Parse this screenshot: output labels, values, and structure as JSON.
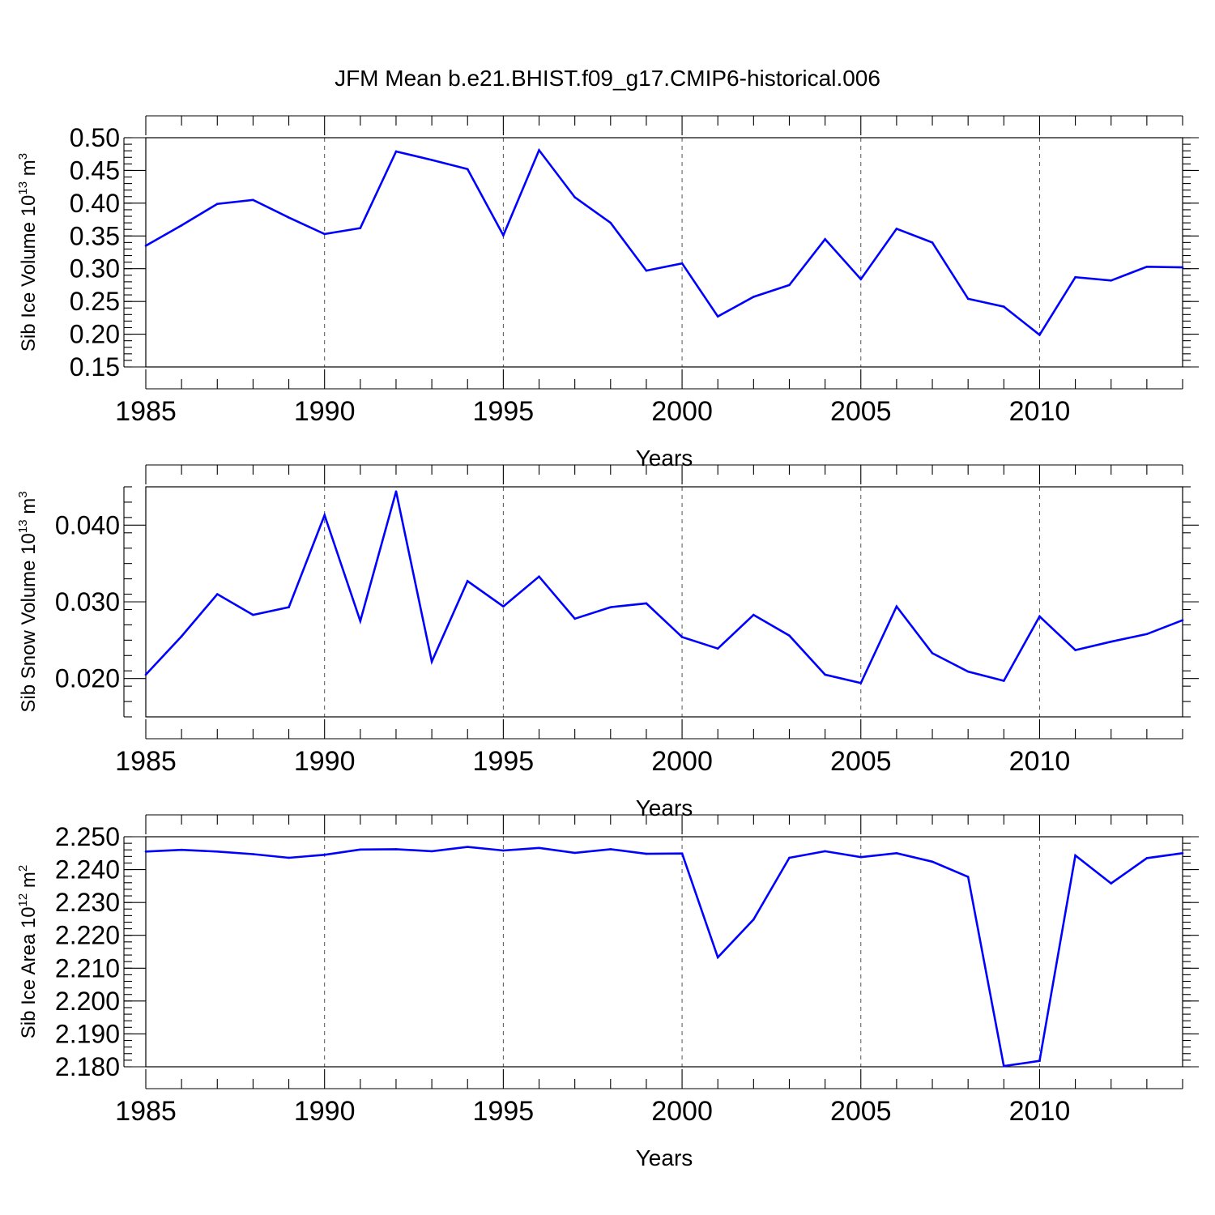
{
  "chart_data": {
    "title": "JFM Mean b.e21.BHIST.f09_g17.CMIP6-historical.006",
    "panels": [
      {
        "type": "line",
        "ylabel": {
          "prefix": "Sib Ice Volume 10",
          "exp": "13",
          "mid": " m",
          "unit_exp": "3"
        },
        "xlabel": "Years",
        "xlim": [
          1985,
          2014
        ],
        "xticks": [
          1985,
          1990,
          1995,
          2000,
          2005,
          2010
        ],
        "ylim": [
          0.15,
          0.5
        ],
        "yticks": [
          0.15,
          0.2,
          0.25,
          0.3,
          0.35,
          0.4,
          0.45,
          0.5
        ],
        "ytick_labels": [
          "0.15",
          "0.20",
          "0.25",
          "0.30",
          "0.35",
          "0.40",
          "0.45",
          "0.50"
        ],
        "grid": "vertical-dashed",
        "color": "#0000ff",
        "x": [
          1985,
          1986,
          1987,
          1988,
          1989,
          1990,
          1991,
          1992,
          1993,
          1994,
          1995,
          1996,
          1997,
          1998,
          1999,
          2000,
          2001,
          2002,
          2003,
          2004,
          2005,
          2006,
          2007,
          2008,
          2009,
          2010,
          2011,
          2012,
          2013,
          2014
        ],
        "values": [
          0.335,
          0.366,
          0.399,
          0.405,
          0.378,
          0.353,
          0.362,
          0.479,
          0.466,
          0.452,
          0.351,
          0.481,
          0.409,
          0.37,
          0.297,
          0.308,
          0.227,
          0.257,
          0.275,
          0.345,
          0.284,
          0.361,
          0.34,
          0.254,
          0.242,
          0.199,
          0.287,
          0.282,
          0.303,
          0.302
        ]
      },
      {
        "type": "line",
        "ylabel": {
          "prefix": "Sib Snow Volume 10",
          "exp": "13",
          "mid": " m",
          "unit_exp": "3"
        },
        "xlabel": "Years",
        "xlim": [
          1985,
          2014
        ],
        "xticks": [
          1985,
          1990,
          1995,
          2000,
          2005,
          2010
        ],
        "ylim": [
          0.015,
          0.045
        ],
        "yticks": [
          0.02,
          0.03,
          0.04
        ],
        "ytick_labels": [
          "0.020",
          "0.030",
          "0.040"
        ],
        "grid": "vertical-dashed",
        "color": "#0000ff",
        "x": [
          1985,
          1986,
          1987,
          1988,
          1989,
          1990,
          1991,
          1992,
          1993,
          1994,
          1995,
          1996,
          1997,
          1998,
          1999,
          2000,
          2001,
          2002,
          2003,
          2004,
          2005,
          2006,
          2007,
          2008,
          2009,
          2010,
          2011,
          2012,
          2013,
          2014
        ],
        "values": [
          0.0205,
          0.0255,
          0.031,
          0.0283,
          0.0293,
          0.0413,
          0.0275,
          0.0444,
          0.0222,
          0.0327,
          0.0294,
          0.0333,
          0.0278,
          0.0293,
          0.0298,
          0.0254,
          0.0239,
          0.0283,
          0.0256,
          0.0205,
          0.0194,
          0.0294,
          0.0233,
          0.0209,
          0.0197,
          0.0281,
          0.0237,
          0.0248,
          0.0258,
          0.0276
        ]
      },
      {
        "type": "line",
        "ylabel": {
          "prefix": "Sib Ice Area 10",
          "exp": "12",
          "mid": " m",
          "unit_exp": "2"
        },
        "xlabel": "Years",
        "xlim": [
          1985,
          2014
        ],
        "xticks": [
          1985,
          1990,
          1995,
          2000,
          2005,
          2010
        ],
        "ylim": [
          2.18,
          2.25
        ],
        "yticks": [
          2.18,
          2.19,
          2.2,
          2.21,
          2.22,
          2.23,
          2.24,
          2.25
        ],
        "ytick_labels": [
          "2.180",
          "2.190",
          "2.200",
          "2.210",
          "2.220",
          "2.230",
          "2.240",
          "2.250"
        ],
        "grid": "vertical-dashed",
        "color": "#0000ff",
        "x": [
          1985,
          1986,
          1987,
          1988,
          1989,
          1990,
          1991,
          1992,
          1993,
          1994,
          1995,
          1996,
          1997,
          1998,
          1999,
          2000,
          2001,
          2002,
          2003,
          2004,
          2005,
          2006,
          2007,
          2008,
          2009,
          2010,
          2011,
          2012,
          2013,
          2014
        ],
        "values": [
          2.2455,
          2.246,
          2.2455,
          2.2447,
          2.2436,
          2.2445,
          2.2461,
          2.2462,
          2.2456,
          2.2469,
          2.2458,
          2.2466,
          2.2451,
          2.2462,
          2.2448,
          2.2449,
          2.2133,
          2.2248,
          2.2436,
          2.2456,
          2.2438,
          2.245,
          2.2424,
          2.2378,
          2.1802,
          2.1818,
          2.2443,
          2.2358,
          2.2435,
          2.245
        ]
      }
    ]
  }
}
